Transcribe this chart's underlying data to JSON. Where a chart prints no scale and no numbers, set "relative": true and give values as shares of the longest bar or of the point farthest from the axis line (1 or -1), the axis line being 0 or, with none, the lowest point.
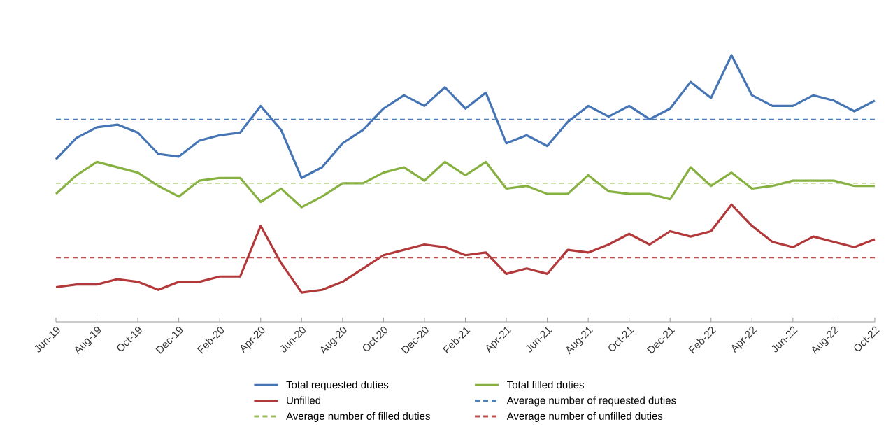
{
  "chart_data": {
    "type": "line",
    "relative": true,
    "legend": "bottom",
    "line_style": "solid",
    "categories": [
      "Jun-19",
      null,
      "Aug-19",
      null,
      "Oct-19",
      null,
      "Dec-19",
      null,
      "Feb-20",
      null,
      "Apr-20",
      null,
      "Jun-20",
      null,
      "Aug-20",
      null,
      "Oct-20",
      null,
      "Dec-20",
      null,
      "Feb-21",
      null,
      "Apr-21",
      null,
      "Jun-21",
      null,
      "Aug-21",
      null,
      "Oct-21",
      null,
      "Dec-21",
      null,
      "Feb-22",
      null,
      "Apr-22",
      null,
      "Jun-22",
      null,
      "Aug-22",
      null,
      "Oct-22"
    ],
    "series": [
      {
        "name": "Total requested duties",
        "color": "#4575b4",
        "values": [
          0.61,
          0.69,
          0.73,
          0.74,
          0.71,
          0.63,
          0.62,
          0.68,
          0.7,
          0.71,
          0.81,
          0.72,
          0.54,
          0.58,
          0.67,
          0.72,
          0.8,
          0.85,
          0.81,
          0.88,
          0.8,
          0.86,
          0.67,
          0.7,
          0.66,
          0.75,
          0.81,
          0.77,
          0.81,
          0.76,
          0.8,
          0.9,
          0.84,
          1,
          0.85,
          0.81,
          0.81,
          0.85,
          0.83,
          0.79,
          0.83
        ]
      },
      {
        "name": "Total filled duties",
        "color": "#86b040",
        "values": [
          0.48,
          0.55,
          0.6,
          0.58,
          0.56,
          0.51,
          0.47,
          0.53,
          0.54,
          0.54,
          0.45,
          0.5,
          0.43,
          0.47,
          0.52,
          0.52,
          0.56,
          0.58,
          0.53,
          0.6,
          0.55,
          0.6,
          0.5,
          0.51,
          0.48,
          0.48,
          0.55,
          0.49,
          0.48,
          0.48,
          0.46,
          0.58,
          0.51,
          0.56,
          0.5,
          0.51,
          0.53,
          0.53,
          0.53,
          0.51,
          0.51
        ]
      },
      {
        "name": "Unfilled",
        "color": "#b2383a",
        "values": [
          0.13,
          0.14,
          0.14,
          0.16,
          0.15,
          0.12,
          0.15,
          0.15,
          0.17,
          0.17,
          0.36,
          0.22,
          0.11,
          0.12,
          0.15,
          0.2,
          0.25,
          0.27,
          0.29,
          0.28,
          0.25,
          0.26,
          0.18,
          0.2,
          0.18,
          0.27,
          0.26,
          0.29,
          0.33,
          0.29,
          0.34,
          0.32,
          0.34,
          0.44,
          0.36,
          0.3,
          0.28,
          0.32,
          0.3,
          0.28,
          0.31
        ]
      }
    ],
    "ref_lines": [
      {
        "axis": "y",
        "value": 0.76,
        "label": "Average number of requested duties",
        "color": "#4a7ebb",
        "line_style": "dashed"
      },
      {
        "axis": "y",
        "value": 0.52,
        "label": "Average number of filled duties",
        "color": "#9bbb59",
        "line_style": "dashed"
      },
      {
        "axis": "y",
        "value": 0.24,
        "label": "Average number of unfilled duties",
        "color": "#c0504d",
        "line_style": "dashed"
      }
    ]
  }
}
